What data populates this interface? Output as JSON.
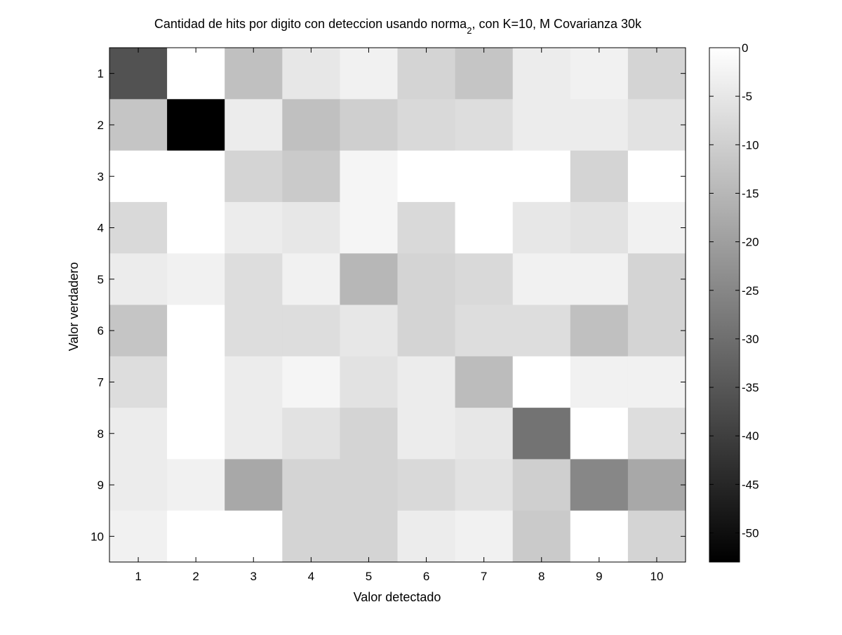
{
  "chart_data": {
    "type": "heatmap",
    "title_main": "Cantidad de hits por digito con deteccion usando norma",
    "title_sub": "2",
    "title_tail": ", con K=10, M Covarianza 30k",
    "xlabel": "Valor detectado",
    "ylabel": "Valor verdadero",
    "x_categories": [
      "1",
      "2",
      "3",
      "4",
      "5",
      "6",
      "7",
      "8",
      "9",
      "10"
    ],
    "y_categories": [
      "1",
      "2",
      "3",
      "4",
      "5",
      "6",
      "7",
      "8",
      "9",
      "10"
    ],
    "values": [
      [
        -36,
        0,
        -13,
        -5,
        -3,
        -9,
        -12,
        -4,
        -3,
        -9
      ],
      [
        -12,
        -53,
        -4,
        -13,
        -10,
        -8,
        -7,
        -4,
        -4,
        -6
      ],
      [
        0,
        0,
        -9,
        -11,
        -2,
        0,
        0,
        0,
        -9,
        0
      ],
      [
        -8,
        0,
        -4,
        -5,
        -2,
        -8,
        0,
        -5,
        -6,
        -3
      ],
      [
        -4,
        -3,
        -7,
        -3,
        -15,
        -9,
        -8,
        -3,
        -3,
        -9
      ],
      [
        -12,
        0,
        -7,
        -7,
        -5,
        -9,
        -7,
        -7,
        -13,
        -9
      ],
      [
        -7,
        0,
        -4,
        -2,
        -6,
        -4,
        -14,
        0,
        -3,
        -3
      ],
      [
        -4,
        0,
        -4,
        -6,
        -9,
        -4,
        -5,
        -29,
        0,
        -7
      ],
      [
        -4,
        -3,
        -18,
        -9,
        -9,
        -8,
        -6,
        -10,
        -25,
        -18
      ],
      [
        -3,
        0,
        0,
        -9,
        -9,
        -4,
        -3,
        -11,
        0,
        -9
      ]
    ],
    "clim": [
      -53,
      0
    ],
    "colormap": "gray",
    "colorbar_ticks": [
      0,
      -5,
      -10,
      -15,
      -20,
      -25,
      -30,
      -35,
      -40,
      -45,
      -50
    ],
    "colorbar_tick_labels": [
      "0",
      "-5",
      "-10",
      "-15",
      "-20",
      "-25",
      "-30",
      "-35",
      "-40",
      "-45",
      "-50"
    ],
    "grid": false,
    "colors": {
      "low": "#000000",
      "high": "#ffffff",
      "axis": "#000000",
      "background": "#ffffff"
    }
  }
}
